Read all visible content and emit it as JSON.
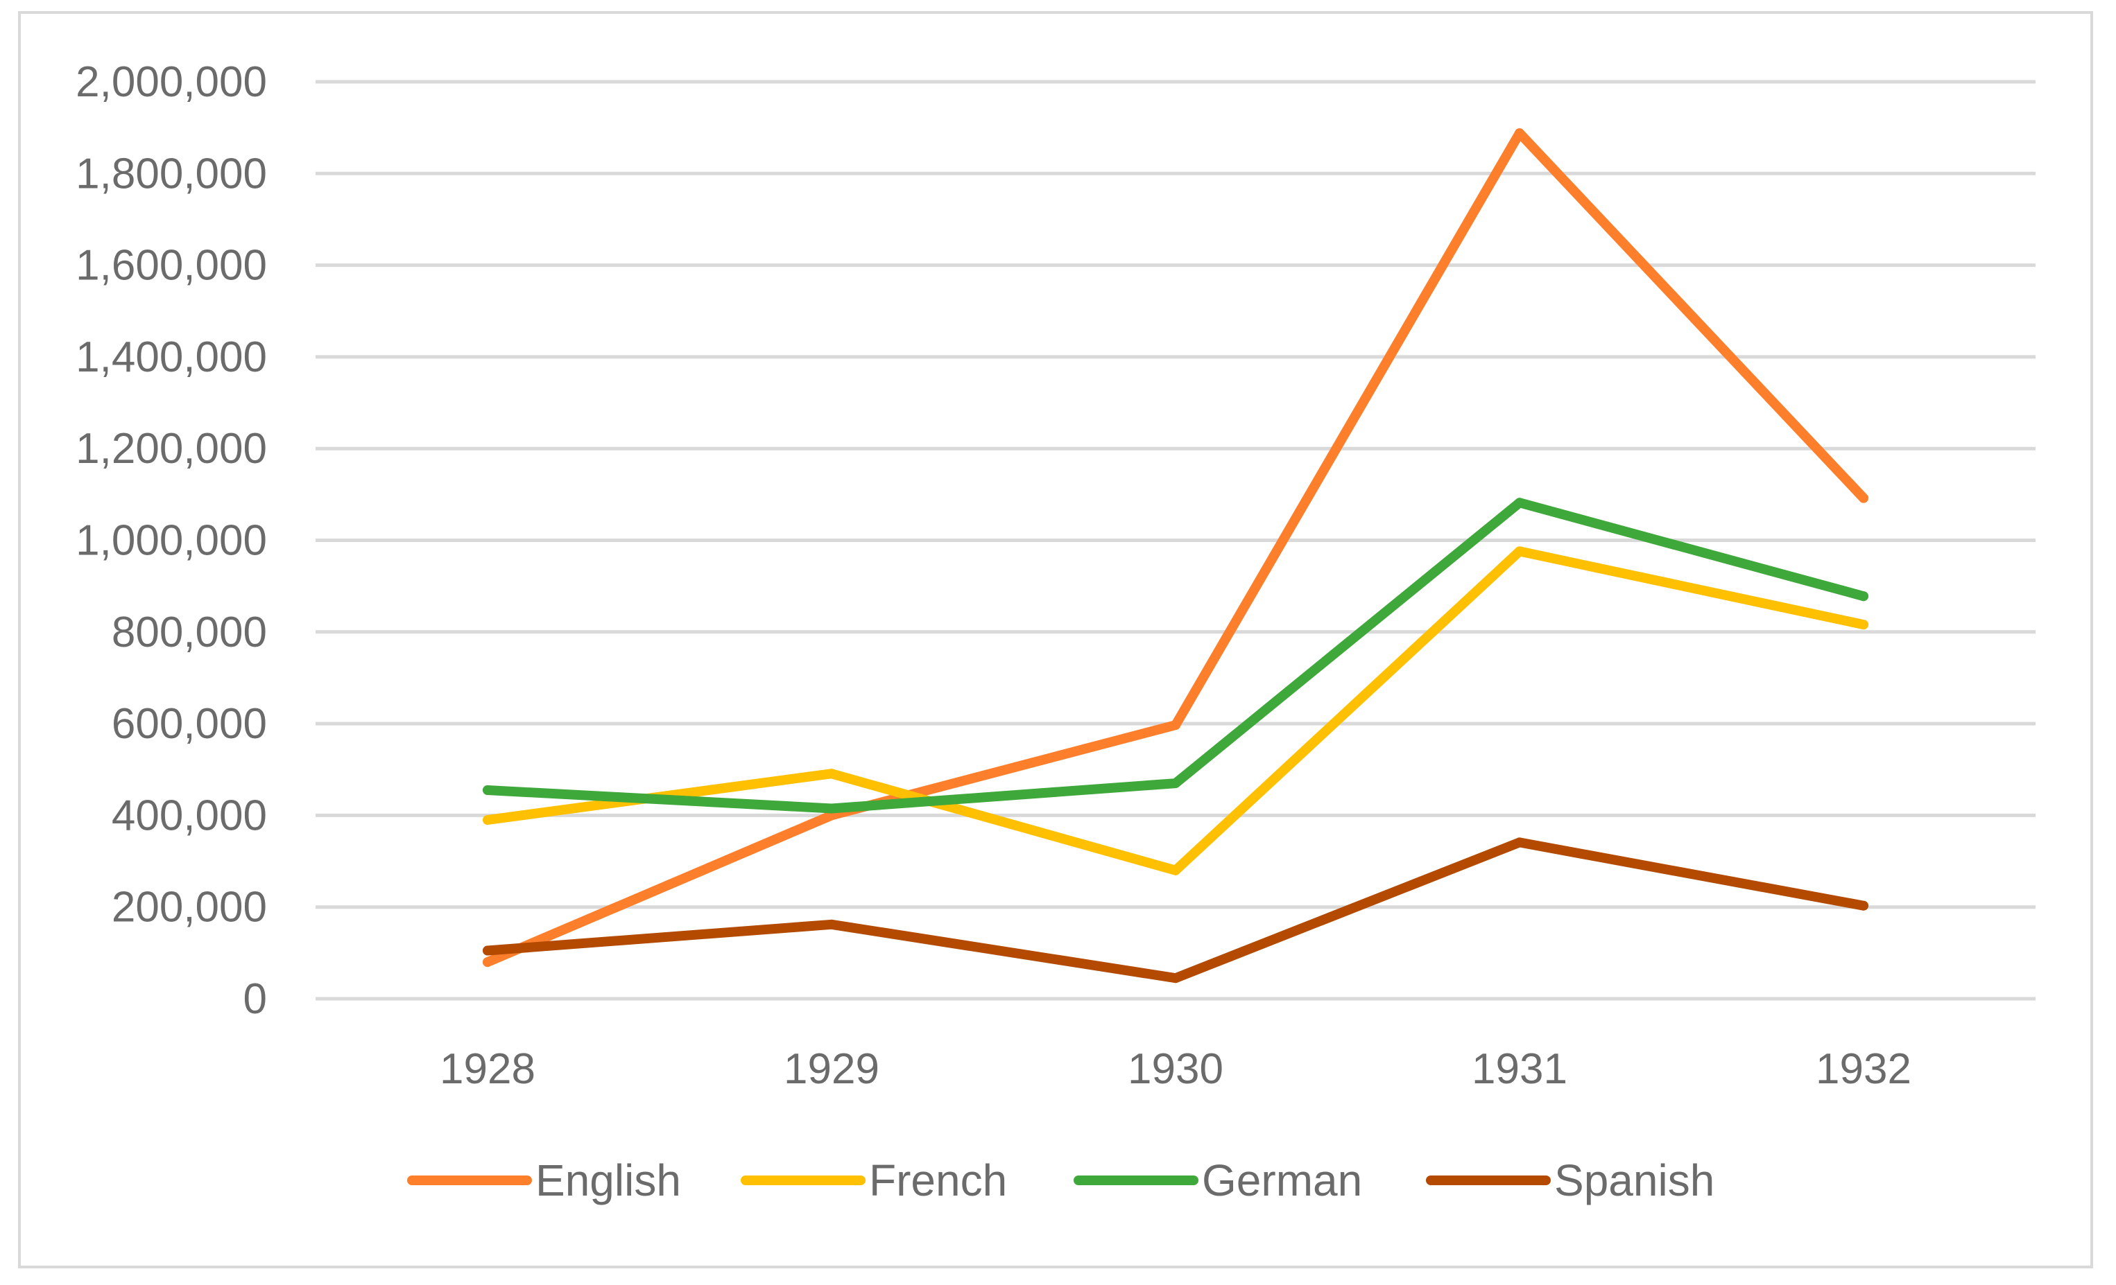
{
  "chart_data": {
    "type": "line",
    "title": "",
    "xlabel": "",
    "ylabel": "",
    "categories": [
      "1928",
      "1929",
      "1930",
      "1931",
      "1932"
    ],
    "ylim": [
      0,
      2000000
    ],
    "yticks": [
      0,
      200000,
      400000,
      600000,
      800000,
      1000000,
      1200000,
      1400000,
      1600000,
      1800000,
      2000000
    ],
    "ytick_labels": [
      "0",
      "200,000",
      "400,000",
      "600,000",
      "800,000",
      "1,000,000",
      "1,200,000",
      "1,400,000",
      "1,600,000",
      "1,800,000",
      "2,000,000"
    ],
    "grid": "horizontal",
    "legend_position": "bottom",
    "series": [
      {
        "name": "English",
        "color": "#fd7f2c",
        "values": [
          80000,
          400000,
          597000,
          1888000,
          1092000
        ]
      },
      {
        "name": "French",
        "color": "#fec000",
        "values": [
          390000,
          491000,
          280000,
          976000,
          816000
        ]
      },
      {
        "name": "German",
        "color": "#3fa83a",
        "values": [
          455000,
          415000,
          470000,
          1082000,
          878000
        ]
      },
      {
        "name": "Spanish",
        "color": "#b34a00",
        "values": [
          105000,
          162000,
          45000,
          341000,
          203000
        ]
      }
    ]
  }
}
